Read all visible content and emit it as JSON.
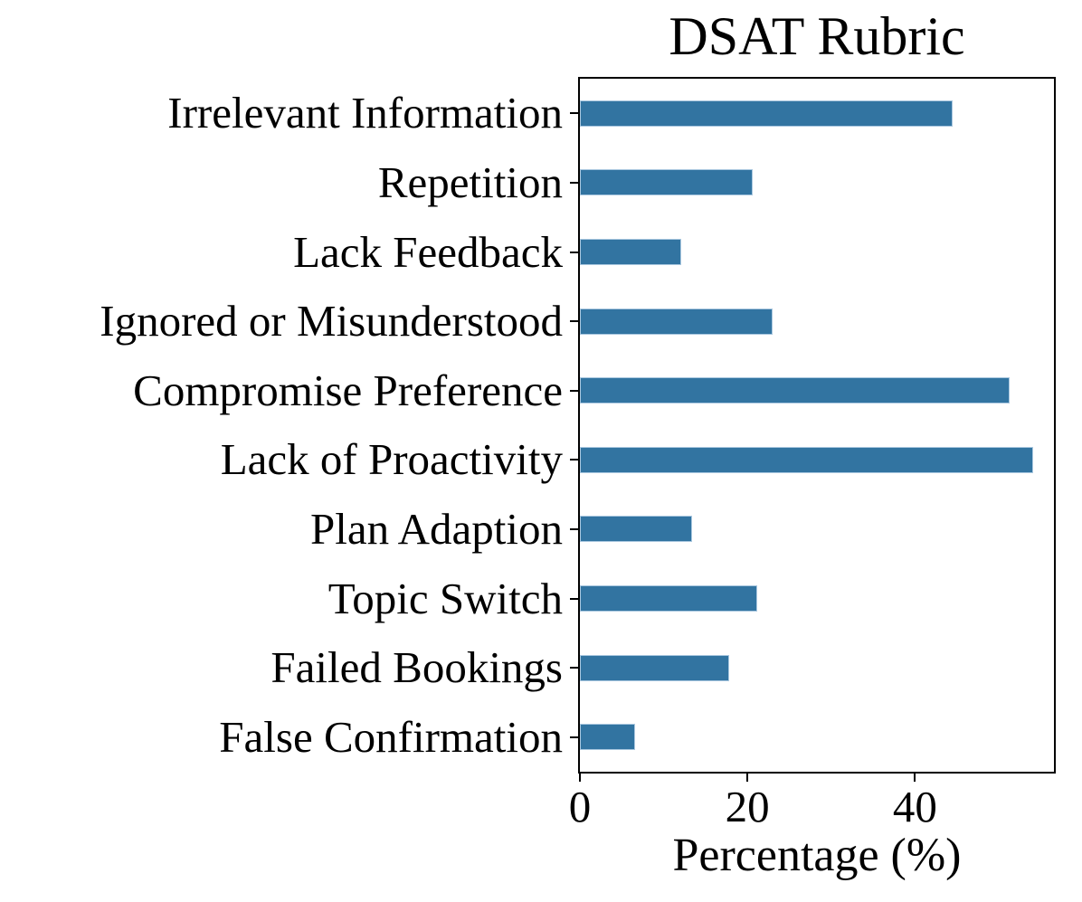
{
  "title": "DSAT Rubric",
  "xlabel": "Percentage (%)",
  "colors": {
    "bar": "#3274a1",
    "bar_edge": "#a9c7df",
    "axis": "#000000",
    "text": "#000000",
    "background": "#ffffff"
  },
  "chart_data": {
    "type": "bar",
    "orientation": "horizontal",
    "title": "DSAT Rubric",
    "xlabel": "Percentage (%)",
    "ylabel": "",
    "categories": [
      "Irrelevant Information",
      "Repetition",
      "Lack Feedback",
      "Ignored or Misunderstood",
      "Compromise Preference",
      "Lack of Proactivity",
      "Plan Adaption",
      "Topic Switch",
      "Failed Bookings",
      "False Confirmation"
    ],
    "values": [
      44.5,
      20.6,
      12.1,
      23.0,
      51.3,
      54.1,
      13.4,
      21.2,
      17.8,
      6.6
    ],
    "xlim": [
      0,
      56.6
    ],
    "x_ticks": [
      0,
      20,
      40
    ],
    "grid": false,
    "legend": false
  }
}
